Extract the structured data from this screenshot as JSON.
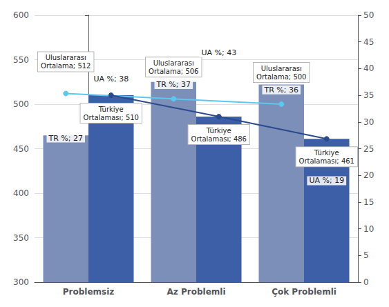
{
  "chart_data": {
    "type": "bar",
    "categories": [
      "Problemsiz",
      "Az Problemli",
      "Çok Problemli"
    ],
    "ylim": [
      300,
      600
    ],
    "yticks": [
      300,
      350,
      400,
      450,
      500,
      550,
      600
    ],
    "y2lim": [
      0,
      50
    ],
    "y2ticks": [
      0,
      5,
      10,
      15,
      20,
      25,
      30,
      35,
      40,
      45,
      50
    ],
    "grid": true,
    "series": [
      {
        "type": "bar",
        "color": "#7b8fb8",
        "values": [
          465,
          525,
          522
        ]
      },
      {
        "type": "bar",
        "color": "#3d5fa8",
        "values": [
          510,
          486,
          461
        ]
      },
      {
        "type": "line",
        "color": "#5bc8f0",
        "marker": "circle",
        "values": [
          512,
          506,
          500
        ],
        "data_labels": true,
        "value_labels": [
          "Uluslararası\nOrtalama; 512",
          "Uluslararası\nOrtalama; 506",
          "Uluslararası\nOrtalama; 500"
        ]
      },
      {
        "type": "line",
        "color": "#2a4a8c",
        "marker": "circle",
        "values": [
          510,
          486,
          461
        ],
        "data_labels": true,
        "value_labels": [
          "Türkiye\nOrtalaması; 510",
          "Türkiye\nOrtalaması; 486",
          "Türkiye\nOrtalaması; 461"
        ]
      },
      {
        "type": "scatter",
        "axis": "y2",
        "marker": "none",
        "values": [
          27,
          37,
          36
        ],
        "data_labels": true,
        "value_labels": [
          "TR %; 27",
          "TR %; 37",
          "TR %; 36"
        ]
      },
      {
        "type": "scatter",
        "axis": "y2",
        "marker": "none",
        "values": [
          38,
          43,
          19
        ],
        "data_labels": true,
        "value_labels": [
          "UA %; 38",
          "UA %; 43",
          "UA %; 19"
        ]
      }
    ]
  }
}
